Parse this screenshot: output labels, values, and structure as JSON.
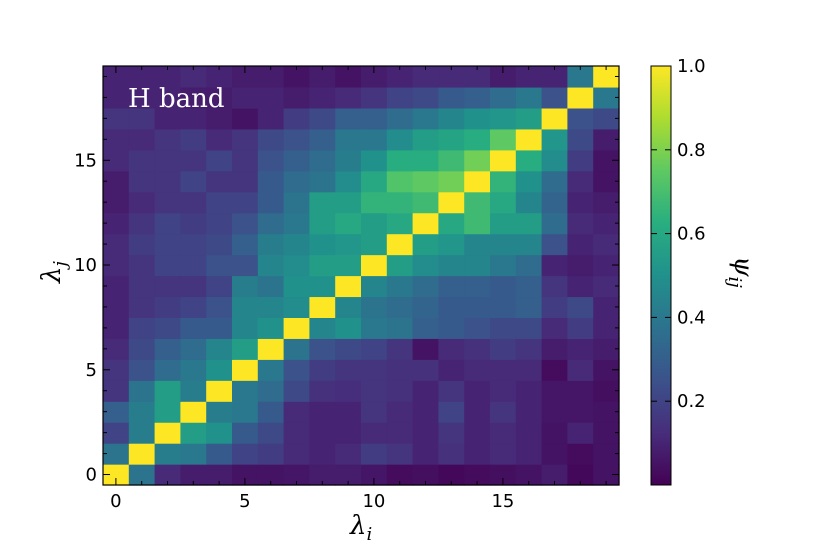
{
  "chart_data": {
    "type": "heatmap",
    "title": "",
    "annotation": "H band",
    "xlabel": "λ",
    "xlabel_sub": "i",
    "ylabel": "λ",
    "ylabel_sub": "j",
    "colorbar_label": "ψ",
    "colorbar_label_sub": "ij",
    "colormap": "viridis",
    "x_ticks": [
      0,
      5,
      10,
      15
    ],
    "y_ticks": [
      0,
      5,
      10,
      15
    ],
    "colorbar_ticks": [
      0.2,
      0.4,
      0.6,
      0.8,
      1.0
    ],
    "colorbar_tick_labels": [
      "0.2",
      "0.4",
      "0.6",
      "0.8",
      "1.0"
    ],
    "vmin": 0.0,
    "vmax": 1.0,
    "n_cols": 20,
    "n_rows": 20,
    "matrix_note": "matrix[j][i], row j=0 is bottom",
    "matrix": [
      [
        1.0,
        0.38,
        0.12,
        0.08,
        0.08,
        0.05,
        0.05,
        0.06,
        0.08,
        0.08,
        0.06,
        0.03,
        0.04,
        0.02,
        0.03,
        0.04,
        0.05,
        0.08,
        0.02,
        0.05
      ],
      [
        0.38,
        1.0,
        0.42,
        0.4,
        0.28,
        0.2,
        0.18,
        0.12,
        0.1,
        0.12,
        0.18,
        0.15,
        0.1,
        0.14,
        0.1,
        0.12,
        0.1,
        0.05,
        0.03,
        0.05
      ],
      [
        0.2,
        0.42,
        1.0,
        0.55,
        0.5,
        0.28,
        0.22,
        0.12,
        0.1,
        0.1,
        0.12,
        0.12,
        0.1,
        0.15,
        0.1,
        0.12,
        0.1,
        0.05,
        0.1,
        0.05
      ],
      [
        0.3,
        0.42,
        0.55,
        1.0,
        0.42,
        0.4,
        0.28,
        0.12,
        0.1,
        0.1,
        0.15,
        0.12,
        0.1,
        0.2,
        0.1,
        0.15,
        0.1,
        0.06,
        0.06,
        0.05
      ],
      [
        0.15,
        0.38,
        0.55,
        0.42,
        1.0,
        0.4,
        0.35,
        0.22,
        0.14,
        0.13,
        0.15,
        0.14,
        0.1,
        0.15,
        0.1,
        0.12,
        0.1,
        0.06,
        0.06,
        0.04
      ],
      [
        0.15,
        0.25,
        0.35,
        0.4,
        0.5,
        1.0,
        0.4,
        0.25,
        0.18,
        0.15,
        0.15,
        0.14,
        0.14,
        0.1,
        0.12,
        0.12,
        0.12,
        0.03,
        0.12,
        0.05
      ],
      [
        0.12,
        0.22,
        0.3,
        0.35,
        0.45,
        0.55,
        1.0,
        0.38,
        0.25,
        0.22,
        0.2,
        0.15,
        0.05,
        0.12,
        0.14,
        0.18,
        0.15,
        0.08,
        0.1,
        0.08
      ],
      [
        0.1,
        0.2,
        0.22,
        0.28,
        0.28,
        0.45,
        0.5,
        1.0,
        0.45,
        0.5,
        0.4,
        0.38,
        0.3,
        0.28,
        0.25,
        0.22,
        0.22,
        0.12,
        0.18,
        0.1
      ],
      [
        0.1,
        0.15,
        0.18,
        0.2,
        0.25,
        0.45,
        0.45,
        0.48,
        1.0,
        0.45,
        0.38,
        0.35,
        0.32,
        0.28,
        0.28,
        0.28,
        0.3,
        0.18,
        0.22,
        0.1
      ],
      [
        0.1,
        0.15,
        0.15,
        0.15,
        0.2,
        0.42,
        0.38,
        0.5,
        0.5,
        1.0,
        0.45,
        0.4,
        0.35,
        0.3,
        0.3,
        0.28,
        0.3,
        0.15,
        0.1,
        0.12
      ],
      [
        0.12,
        0.15,
        0.2,
        0.2,
        0.25,
        0.25,
        0.45,
        0.48,
        0.55,
        0.55,
        1.0,
        0.55,
        0.48,
        0.45,
        0.45,
        0.4,
        0.35,
        0.1,
        0.08,
        0.1
      ],
      [
        0.12,
        0.18,
        0.2,
        0.2,
        0.22,
        0.3,
        0.42,
        0.45,
        0.5,
        0.52,
        0.55,
        1.0,
        0.55,
        0.52,
        0.45,
        0.45,
        0.45,
        0.25,
        0.1,
        0.12
      ],
      [
        0.1,
        0.15,
        0.2,
        0.18,
        0.2,
        0.25,
        0.35,
        0.4,
        0.55,
        0.6,
        0.55,
        0.6,
        1.0,
        0.6,
        0.68,
        0.55,
        0.55,
        0.35,
        0.12,
        0.1
      ],
      [
        0.08,
        0.12,
        0.15,
        0.15,
        0.2,
        0.2,
        0.28,
        0.38,
        0.55,
        0.55,
        0.65,
        0.65,
        0.68,
        1.0,
        0.68,
        0.6,
        0.45,
        0.32,
        0.1,
        0.08
      ],
      [
        0.08,
        0.15,
        0.15,
        0.2,
        0.15,
        0.15,
        0.28,
        0.35,
        0.38,
        0.48,
        0.6,
        0.72,
        0.75,
        0.78,
        1.0,
        0.65,
        0.5,
        0.35,
        0.12,
        0.05
      ],
      [
        0.12,
        0.15,
        0.15,
        0.15,
        0.2,
        0.15,
        0.25,
        0.3,
        0.35,
        0.42,
        0.5,
        0.62,
        0.62,
        0.68,
        0.78,
        1.0,
        0.62,
        0.48,
        0.18,
        0.05
      ],
      [
        0.12,
        0.12,
        0.15,
        0.18,
        0.12,
        0.15,
        0.22,
        0.25,
        0.3,
        0.4,
        0.4,
        0.48,
        0.55,
        0.58,
        0.62,
        0.75,
        1.0,
        0.52,
        0.22,
        0.08
      ],
      [
        0.15,
        0.15,
        0.1,
        0.1,
        0.08,
        0.05,
        0.1,
        0.18,
        0.22,
        0.3,
        0.3,
        0.35,
        0.4,
        0.45,
        0.5,
        0.52,
        0.55,
        1.0,
        0.25,
        0.22
      ],
      [
        0.1,
        0.1,
        0.1,
        0.08,
        0.08,
        0.1,
        0.1,
        0.08,
        0.1,
        0.12,
        0.15,
        0.2,
        0.22,
        0.28,
        0.3,
        0.35,
        0.4,
        0.25,
        1.0,
        0.4
      ],
      [
        0.1,
        0.1,
        0.1,
        0.12,
        0.1,
        0.08,
        0.08,
        0.05,
        0.08,
        0.05,
        0.08,
        0.1,
        0.12,
        0.12,
        0.12,
        0.08,
        0.1,
        0.1,
        0.4,
        1.0
      ]
    ]
  }
}
